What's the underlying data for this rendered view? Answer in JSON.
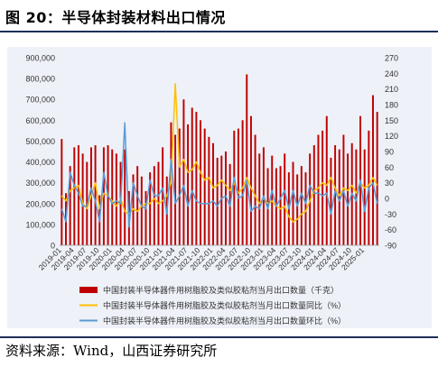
{
  "figure": {
    "title": "图 20：半导体封装材料出口情况",
    "source": "资料来源：Wind，山西证券研究所"
  },
  "colors": {
    "bars": "#c00000",
    "yoy": "#ffc000",
    "mom": "#5b9bd5",
    "panel": "#eef1f8",
    "rule": "#1f2f5a"
  },
  "chart_data": {
    "type": "bar",
    "title": "",
    "grid": false,
    "legend_position": "bottom",
    "left_axis": {
      "min": 0,
      "max": 900000,
      "step": 100000,
      "ticks": [
        "0",
        "100,000",
        "200,000",
        "300,000",
        "400,000",
        "500,000",
        "600,000",
        "700,000",
        "800,000",
        "900,000"
      ]
    },
    "right_axis": {
      "min": -90,
      "max": 270,
      "step": 30,
      "ticks": [
        "-90",
        "-60",
        "-30",
        "0",
        "30",
        "60",
        "90",
        "120",
        "150",
        "180",
        "210",
        "240",
        "270"
      ]
    },
    "x_tick_labels": [
      "2019-01",
      "2019-04",
      "2019-07",
      "2019-10",
      "2020-01",
      "2020-04",
      "2020-07",
      "2020-10",
      "2021-01",
      "2021-04",
      "2021-07",
      "2021-10",
      "2022-01",
      "2022-04",
      "2022-07",
      "2022-10",
      "2023-01",
      "2023-04",
      "2023-07",
      "2023-10",
      "2024-01",
      "2024-04",
      "2024-07",
      "2024-10",
      "2025-01"
    ],
    "x": [
      "2019-01",
      "2019-02",
      "2019-03",
      "2019-04",
      "2019-05",
      "2019-06",
      "2019-07",
      "2019-08",
      "2019-09",
      "2019-10",
      "2019-11",
      "2019-12",
      "2020-01",
      "2020-02",
      "2020-03",
      "2020-04",
      "2020-05",
      "2020-06",
      "2020-07",
      "2020-08",
      "2020-09",
      "2020-10",
      "2020-11",
      "2020-12",
      "2021-01",
      "2021-02",
      "2021-03",
      "2021-04",
      "2021-05",
      "2021-06",
      "2021-07",
      "2021-08",
      "2021-09",
      "2021-10",
      "2021-11",
      "2021-12",
      "2022-01",
      "2022-02",
      "2022-03",
      "2022-04",
      "2022-05",
      "2022-06",
      "2022-07",
      "2022-08",
      "2022-09",
      "2022-10",
      "2022-11",
      "2022-12",
      "2023-01",
      "2023-02",
      "2023-03",
      "2023-04",
      "2023-05",
      "2023-06",
      "2023-07",
      "2023-08",
      "2023-09",
      "2023-10",
      "2023-11",
      "2023-12",
      "2024-01",
      "2024-02",
      "2024-03",
      "2024-04",
      "2024-05",
      "2024-06",
      "2024-07",
      "2024-08",
      "2024-09",
      "2024-10",
      "2024-11",
      "2024-12",
      "2025-01",
      "2025-02",
      "2025-03",
      "2025-04"
    ],
    "series": [
      {
        "name": "中国封装半导体器件用树脂胶及类似胶粘剂当月出口数量（千克）",
        "type": "bar",
        "axis": "left",
        "values": [
          510000,
          250000,
          380000,
          470000,
          480000,
          440000,
          400000,
          470000,
          480000,
          240000,
          470000,
          480000,
          460000,
          440000,
          400000,
          460000,
          260000,
          340000,
          380000,
          330000,
          260000,
          350000,
          380000,
          400000,
          470000,
          330000,
          590000,
          530000,
          560000,
          700000,
          580000,
          660000,
          640000,
          600000,
          560000,
          520000,
          490000,
          420000,
          430000,
          450000,
          390000,
          550000,
          560000,
          600000,
          820000,
          620000,
          530000,
          440000,
          470000,
          370000,
          430000,
          370000,
          380000,
          440000,
          350000,
          400000,
          340000,
          380000,
          350000,
          440000,
          480000,
          530000,
          550000,
          620000,
          420000,
          480000,
          460000,
          530000,
          440000,
          490000,
          460000,
          620000,
          460000,
          550000,
          720000,
          640000
        ]
      },
      {
        "name": "中国封装半导体器件用树脂胶及类似胶粘剂当月出口数量同比（%）",
        "type": "line",
        "axis": "right",
        "color": "#ffc000",
        "values": [
          5,
          -5,
          15,
          20,
          25,
          -10,
          -20,
          5,
          30,
          -20,
          10,
          5,
          -5,
          -15,
          0,
          -25,
          -30,
          -20,
          -25,
          -15,
          -10,
          -10,
          0,
          -10,
          -5,
          5,
          30,
          220,
          60,
          75,
          50,
          55,
          70,
          50,
          35,
          40,
          20,
          25,
          35,
          25,
          15,
          30,
          10,
          20,
          40,
          20,
          5,
          -10,
          0,
          -10,
          -5,
          -15,
          -20,
          -15,
          -35,
          -45,
          -40,
          -30,
          -25,
          -5,
          15,
          20,
          30,
          25,
          40,
          20,
          5,
          20,
          15,
          25,
          10,
          30,
          20,
          25,
          40,
          25
        ]
      },
      {
        "name": "中国封装半导体器件用树脂胶及类似胶粘剂当月出口数量环比（%）",
        "type": "line",
        "axis": "right",
        "color": "#5b9bd5",
        "values": [
          -20,
          -45,
          50,
          25,
          10,
          -15,
          -15,
          20,
          -5,
          -45,
          50,
          5,
          -10,
          -5,
          -10,
          145,
          -55,
          30,
          5,
          -15,
          -20,
          35,
          5,
          5,
          20,
          -30,
          75,
          -10,
          5,
          25,
          -15,
          15,
          -5,
          -10,
          -10,
          -10,
          -5,
          -15,
          0,
          5,
          -15,
          40,
          0,
          5,
          35,
          -25,
          -15,
          -20,
          5,
          -20,
          15,
          -15,
          0,
          15,
          -20,
          15,
          -15,
          10,
          -10,
          25,
          10,
          10,
          5,
          10,
          -30,
          15,
          -5,
          15,
          -15,
          10,
          -5,
          35,
          -25,
          20,
          30,
          -10
        ]
      }
    ]
  }
}
